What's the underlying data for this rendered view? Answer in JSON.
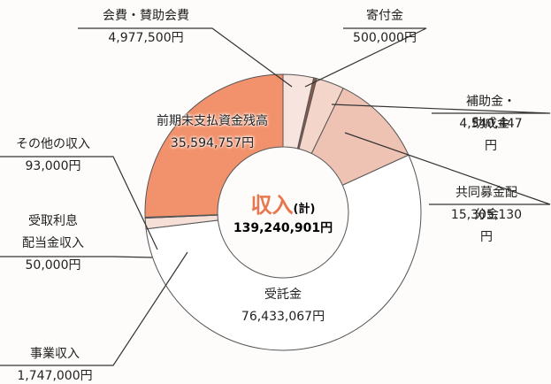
{
  "chart_data": {
    "type": "pie",
    "donut": true,
    "title": "収入",
    "title_note": "(計)",
    "total": {
      "value": 139240901,
      "label": "139,240,901円"
    },
    "categories": [
      "会費・賛助会費",
      "寄付金",
      "補助金・助成金",
      "共同募金配分金",
      "受託金",
      "事業収入",
      "受取利息\n配当金収入",
      "その他の収入",
      "前期末支払資金残高"
    ],
    "values": [
      4977500,
      500000,
      4540447,
      15305130,
      76433067,
      1747000,
      50000,
      93000,
      35594757
    ],
    "value_labels": [
      "4,977,500円",
      "500,000円",
      "4,540,447円",
      "15,305,130円",
      "76,433,067円",
      "1,747,000円",
      "50,000円",
      "93,000円",
      "35,594,757円"
    ],
    "colors": [
      "#f7e4de",
      "#8a5a4a",
      "#f3d5ca",
      "#efc3b4",
      "#ffffff",
      "#f6dfd6",
      "#6b4a3e",
      "#e9b7a6",
      "#f2926c"
    ]
  }
}
